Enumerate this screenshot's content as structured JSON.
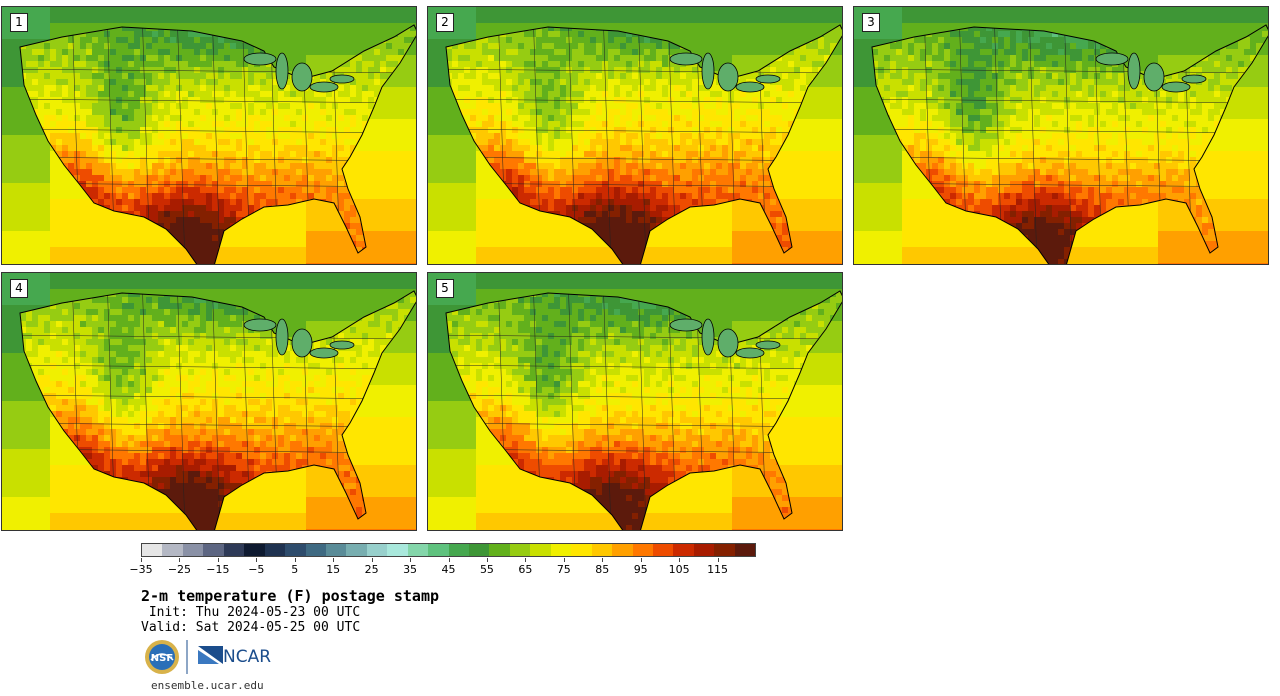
{
  "members": [
    {
      "label": "1",
      "heat_shift": 0.0
    },
    {
      "label": "2",
      "heat_shift": 0.03
    },
    {
      "label": "3",
      "heat_shift": -0.02
    },
    {
      "label": "4",
      "heat_shift": 0.02
    },
    {
      "label": "5",
      "heat_shift": -0.01
    }
  ],
  "colorbar": {
    "colors": [
      "#e6e6e6",
      "#b4b8c4",
      "#8a91a6",
      "#5d6682",
      "#2e3a57",
      "#0e1a30",
      "#1f3250",
      "#2e4c6c",
      "#3f6a82",
      "#5a8c98",
      "#78aeb0",
      "#98d0cc",
      "#a9e8dc",
      "#84d6aa",
      "#5fc27e",
      "#46a84f",
      "#3e9636",
      "#62b01c",
      "#96cc12",
      "#c9e000",
      "#f0f000",
      "#ffe600",
      "#ffc800",
      "#ffa000",
      "#ff7800",
      "#ee4c00",
      "#cc2a00",
      "#a81c00",
      "#842000",
      "#5c1a0c"
    ],
    "min": -35,
    "max": 125,
    "tick_labels": [
      "−35",
      "−25",
      "−15",
      "−5",
      "5",
      "15",
      "25",
      "35",
      "45",
      "55",
      "65",
      "75",
      "85",
      "95",
      "105",
      "115"
    ],
    "tick_values": [
      -35,
      -25,
      -15,
      -5,
      5,
      15,
      25,
      35,
      45,
      55,
      65,
      75,
      85,
      95,
      105,
      115
    ]
  },
  "title": "2-m temperature (F) postage stamp",
  "init_line": " Init: Thu 2024-05-23 00 UTC",
  "valid_line": "Valid: Sat 2024-05-25 00 UTC",
  "logos": {
    "nsf": "NSF",
    "ncar": "NCAR"
  },
  "website": "ensemble.ucar.edu"
}
